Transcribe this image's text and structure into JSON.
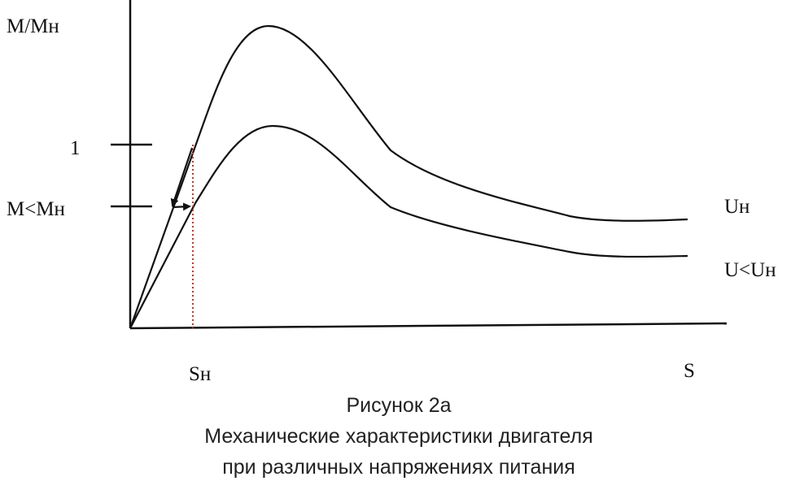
{
  "diagram": {
    "y_axis_label": "М/Мн",
    "x_axis_label": "S",
    "y_tick_labels": {
      "one": "1",
      "reduced": "М<Мн"
    },
    "x_tick_label": "Sн",
    "curve_labels": {
      "nominal": "Uн",
      "reduced": "U<Uн"
    },
    "colors": {
      "lines": "#111111",
      "guide": "#c0392b",
      "caption": "#222222"
    }
  },
  "caption": {
    "line1": "Рисунок 2а",
    "line2": "Механические характеристики двигателя",
    "line3": "при различных напряжениях питания"
  }
}
